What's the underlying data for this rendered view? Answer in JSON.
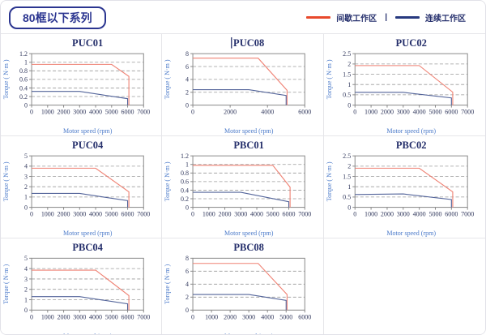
{
  "header": {
    "series_badge": "80框以下系列"
  },
  "legend": {
    "intermittent_label": "间歇工作区",
    "separator": "|",
    "continuous_label": "连续工作区",
    "intermittent_color": "#e8492c",
    "continuous_color": "#27397f"
  },
  "colors": {
    "intermittent_line": "#ef8173",
    "continuous_line": "#53649a",
    "plot_border": "#8a8a8a",
    "gridline": "#9a9a9a",
    "title_text": "#252f6b",
    "axis_label_text": "#4a79c9"
  },
  "chart_data": [
    {
      "type": "line",
      "title": "PUC01",
      "cursor_before_title": false,
      "xlabel": "Motor speed (rpm)",
      "ylabel": "Torque ( N·m )",
      "xlim": [
        0,
        7000
      ],
      "ylim": [
        0,
        1.2
      ],
      "xticks": [
        0,
        1000,
        2000,
        3000,
        4000,
        5000,
        6000,
        7000
      ],
      "yticks": [
        0,
        0.2,
        0.4,
        0.6,
        0.8,
        1,
        1.2
      ],
      "series": [
        {
          "name": "间歇工作区",
          "color": "#ef8173",
          "points": [
            [
              0,
              0.95
            ],
            [
              5000,
              0.95
            ],
            [
              6080,
              0.67
            ],
            [
              6080,
              0
            ]
          ]
        },
        {
          "name": "连续工作区",
          "color": "#53649a",
          "points": [
            [
              0,
              0.32
            ],
            [
              3000,
              0.32
            ],
            [
              6000,
              0.15
            ],
            [
              6000,
              0
            ]
          ]
        }
      ]
    },
    {
      "type": "line",
      "title": "PUC08",
      "cursor_before_title": true,
      "xlabel": "Motor speed (rpm)",
      "ylabel": "Torque ( N·m )",
      "xlim": [
        0,
        6000
      ],
      "ylim": [
        0,
        8
      ],
      "xticks": [
        0,
        2000,
        4000,
        6000
      ],
      "yticks": [
        0,
        2,
        4,
        6,
        8
      ],
      "series": [
        {
          "name": "间歇工作区",
          "color": "#ef8173",
          "points": [
            [
              0,
              7.3
            ],
            [
              3500,
              7.3
            ],
            [
              5050,
              2.3
            ],
            [
              5050,
              0
            ]
          ]
        },
        {
          "name": "连续工作区",
          "color": "#53649a",
          "points": [
            [
              0,
              2.4
            ],
            [
              3000,
              2.4
            ],
            [
              5000,
              1.5
            ],
            [
              5000,
              0
            ]
          ]
        }
      ]
    },
    {
      "type": "line",
      "title": "PUC02",
      "cursor_before_title": false,
      "xlabel": "Motor speed (rpm)",
      "ylabel": "Torque ( N·m )",
      "xlim": [
        0,
        7000
      ],
      "ylim": [
        0,
        2.5
      ],
      "xticks": [
        0,
        1000,
        2000,
        3000,
        4000,
        5000,
        6000,
        7000
      ],
      "yticks": [
        0,
        0.5,
        1,
        1.5,
        2,
        2.5
      ],
      "series": [
        {
          "name": "间歇工作区",
          "color": "#ef8173",
          "points": [
            [
              0,
              1.92
            ],
            [
              4000,
              1.92
            ],
            [
              6080,
              0.63
            ],
            [
              6080,
              0
            ]
          ]
        },
        {
          "name": "连续工作区",
          "color": "#53649a",
          "points": [
            [
              0,
              0.62
            ],
            [
              3000,
              0.62
            ],
            [
              6000,
              0.35
            ],
            [
              6000,
              0
            ]
          ]
        }
      ]
    },
    {
      "type": "line",
      "title": "PUC04",
      "cursor_before_title": false,
      "xlabel": "Motor speed (rpm)",
      "ylabel": "Torque ( N·m )",
      "xlim": [
        0,
        7000
      ],
      "ylim": [
        0,
        5
      ],
      "xticks": [
        0,
        1000,
        2000,
        3000,
        4000,
        5000,
        6000,
        7000
      ],
      "yticks": [
        0,
        1,
        2,
        3,
        4,
        5
      ],
      "series": [
        {
          "name": "间歇工作区",
          "color": "#ef8173",
          "points": [
            [
              0,
              3.8
            ],
            [
              4000,
              3.8
            ],
            [
              6080,
              1.5
            ],
            [
              6080,
              0
            ]
          ]
        },
        {
          "name": "连续工作区",
          "color": "#53649a",
          "points": [
            [
              0,
              1.35
            ],
            [
              3000,
              1.35
            ],
            [
              6000,
              0.65
            ],
            [
              6000,
              0
            ]
          ]
        }
      ]
    },
    {
      "type": "line",
      "title": "PBC01",
      "cursor_before_title": false,
      "xlabel": "Motor speed (rpm)",
      "ylabel": "Torque ( N·m )",
      "xlim": [
        0,
        7000
      ],
      "ylim": [
        0,
        1.2
      ],
      "xticks": [
        0,
        1000,
        2000,
        3000,
        4000,
        5000,
        6000,
        7000
      ],
      "yticks": [
        0,
        0.2,
        0.4,
        0.6,
        0.8,
        1,
        1.2
      ],
      "series": [
        {
          "name": "间歇工作区",
          "color": "#ef8173",
          "points": [
            [
              0,
              0.98
            ],
            [
              5000,
              0.98
            ],
            [
              6080,
              0.47
            ],
            [
              6080,
              0
            ]
          ]
        },
        {
          "name": "连续工作区",
          "color": "#53649a",
          "points": [
            [
              0,
              0.35
            ],
            [
              3000,
              0.35
            ],
            [
              6000,
              0.13
            ],
            [
              6000,
              0
            ]
          ]
        }
      ]
    },
    {
      "type": "line",
      "title": "PBC02",
      "cursor_before_title": false,
      "xlabel": "Motor speed (rpm)",
      "ylabel": "Torque ( N·m )",
      "xlim": [
        0,
        7000
      ],
      "ylim": [
        0,
        2.5
      ],
      "xticks": [
        0,
        1000,
        2000,
        3000,
        4000,
        5000,
        6000,
        7000
      ],
      "yticks": [
        0,
        0.5,
        1,
        1.5,
        2,
        2.5
      ],
      "series": [
        {
          "name": "间歇工作区",
          "color": "#ef8173",
          "points": [
            [
              0,
              1.9
            ],
            [
              4000,
              1.9
            ],
            [
              6080,
              0.75
            ],
            [
              6080,
              0
            ]
          ]
        },
        {
          "name": "连续工作区",
          "color": "#53649a",
          "points": [
            [
              0,
              0.62
            ],
            [
              3000,
              0.65
            ],
            [
              6000,
              0.38
            ],
            [
              6000,
              0
            ]
          ]
        }
      ]
    },
    {
      "type": "line",
      "title": "PBC04",
      "cursor_before_title": false,
      "xlabel": "Motor speed (rpm)",
      "ylabel": "Torque ( N·m )",
      "xlim": [
        0,
        7000
      ],
      "ylim": [
        0,
        5
      ],
      "xticks": [
        0,
        1000,
        2000,
        3000,
        4000,
        5000,
        6000,
        7000
      ],
      "yticks": [
        0,
        1,
        2,
        3,
        4,
        5
      ],
      "series": [
        {
          "name": "间歇工作区",
          "color": "#ef8173",
          "points": [
            [
              0,
              3.85
            ],
            [
              4000,
              3.85
            ],
            [
              6080,
              1.4
            ],
            [
              6080,
              0
            ]
          ]
        },
        {
          "name": "连续工作区",
          "color": "#53649a",
          "points": [
            [
              0,
              1.3
            ],
            [
              3000,
              1.3
            ],
            [
              6000,
              0.6
            ],
            [
              6000,
              0
            ]
          ]
        }
      ]
    },
    {
      "type": "line",
      "title": "PBC08",
      "cursor_before_title": false,
      "xlabel": "Motor speed (rpm)",
      "ylabel": "Torque ( N·m )",
      "xlim": [
        0,
        6000
      ],
      "ylim": [
        0,
        8
      ],
      "xticks": [
        0,
        1000,
        2000,
        3000,
        4000,
        5000,
        6000
      ],
      "yticks": [
        0,
        2,
        4,
        6,
        8
      ],
      "series": [
        {
          "name": "间歇工作区",
          "color": "#ef8173",
          "points": [
            [
              0,
              7.2
            ],
            [
              3500,
              7.2
            ],
            [
              5050,
              2.4
            ],
            [
              5050,
              0
            ]
          ]
        },
        {
          "name": "连续工作区",
          "color": "#53649a",
          "points": [
            [
              0,
              2.4
            ],
            [
              3000,
              2.4
            ],
            [
              5000,
              1.5
            ],
            [
              5000,
              0
            ]
          ]
        }
      ]
    }
  ]
}
